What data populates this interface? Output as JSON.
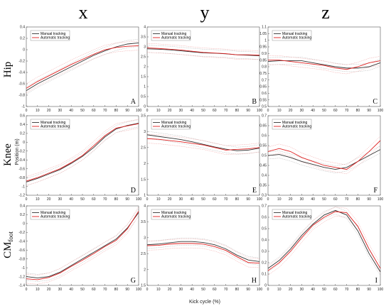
{
  "column_headers": [
    "x",
    "y",
    "z"
  ],
  "row_headers": [
    "Hip",
    "Knee",
    "CM"
  ],
  "row_header_subscript": "foot",
  "shared_xlabel": "Kick cycle (%)",
  "shared_ylabel": "Position (m)",
  "legend": [
    "Manual tracking",
    "Automatic tracking"
  ],
  "colors": {
    "manual": "#333333",
    "automatic": "#e02020",
    "manual_band": "#b5b5b5",
    "automatic_band": "#f2a5a5"
  },
  "chart_data": [
    {
      "type": "line",
      "letter": "A",
      "x": [
        0,
        10,
        20,
        30,
        40,
        50,
        60,
        70,
        80,
        90,
        100
      ],
      "ylim": [
        -1,
        0.4
      ],
      "yticks": [
        "-1",
        "-0.8",
        "-0.6",
        "-0.4",
        "-0.2",
        "0",
        "0.2",
        "0.4"
      ],
      "series": [
        {
          "name": "Manual tracking",
          "values": [
            -0.72,
            -0.6,
            -0.5,
            -0.4,
            -0.3,
            -0.2,
            -0.1,
            -0.02,
            0.05,
            0.1,
            0.12
          ]
        },
        {
          "name": "Automatic tracking",
          "values": [
            -0.68,
            -0.56,
            -0.46,
            -0.36,
            -0.26,
            -0.17,
            -0.08,
            0.0,
            0.04,
            0.06,
            0.07
          ]
        }
      ]
    },
    {
      "type": "line",
      "letter": "B",
      "x": [
        0,
        10,
        20,
        30,
        40,
        50,
        60,
        70,
        80,
        90,
        100
      ],
      "ylim": [
        0,
        4
      ],
      "yticks": [
        "0",
        "0.5",
        "1",
        "1.5",
        "2",
        "2.5",
        "3",
        "3.5",
        "4"
      ],
      "series": [
        {
          "name": "Manual tracking",
          "values": [
            2.9,
            2.88,
            2.85,
            2.8,
            2.75,
            2.7,
            2.68,
            2.65,
            2.6,
            2.58,
            2.55
          ]
        },
        {
          "name": "Automatic tracking",
          "values": [
            2.95,
            2.92,
            2.88,
            2.84,
            2.78,
            2.72,
            2.69,
            2.66,
            2.6,
            2.6,
            2.58
          ]
        }
      ]
    },
    {
      "type": "line",
      "letter": "C",
      "x": [
        0,
        10,
        20,
        30,
        40,
        50,
        60,
        70,
        80,
        90,
        100
      ],
      "ylim": [
        0.5,
        1.1
      ],
      "yticks": [
        "0.5",
        "0.55",
        "0.6",
        "0.65",
        "0.7",
        "0.75",
        "0.8",
        "0.85",
        "0.9",
        "0.95",
        "1",
        "1.05",
        "1.1"
      ],
      "series": [
        {
          "name": "Manual tracking",
          "values": [
            0.84,
            0.845,
            0.845,
            0.845,
            0.83,
            0.815,
            0.8,
            0.79,
            0.79,
            0.8,
            0.83
          ]
        },
        {
          "name": "Automatic tracking",
          "values": [
            0.85,
            0.85,
            0.84,
            0.83,
            0.82,
            0.81,
            0.79,
            0.78,
            0.8,
            0.83,
            0.845
          ]
        }
      ]
    },
    {
      "type": "line",
      "letter": "D",
      "x": [
        0,
        10,
        20,
        30,
        40,
        50,
        60,
        70,
        80,
        90,
        100
      ],
      "ylim": [
        -1.2,
        0.6
      ],
      "yticks": [
        "-1.2",
        "-1",
        "-0.8",
        "-0.6",
        "-0.4",
        "-0.2",
        "0",
        "0.2",
        "0.4",
        "0.6"
      ],
      "series": [
        {
          "name": "Manual tracking",
          "values": [
            -0.9,
            -0.82,
            -0.72,
            -0.62,
            -0.48,
            -0.32,
            -0.12,
            0.12,
            0.3,
            0.38,
            0.43
          ]
        },
        {
          "name": "Automatic tracking",
          "values": [
            -0.88,
            -0.8,
            -0.7,
            -0.6,
            -0.46,
            -0.3,
            -0.08,
            0.15,
            0.32,
            0.37,
            0.42
          ]
        }
      ]
    },
    {
      "type": "line",
      "letter": "E",
      "x": [
        0,
        10,
        20,
        30,
        40,
        50,
        60,
        70,
        80,
        90,
        100
      ],
      "ylim": [
        1,
        3.5
      ],
      "yticks": [
        "1",
        "1.5",
        "2",
        "2.5",
        "3",
        "3.5"
      ],
      "series": [
        {
          "name": "Manual tracking",
          "values": [
            2.9,
            2.85,
            2.8,
            2.75,
            2.68,
            2.6,
            2.52,
            2.45,
            2.4,
            2.42,
            2.48
          ]
        },
        {
          "name": "Automatic tracking",
          "values": [
            2.78,
            2.76,
            2.72,
            2.68,
            2.63,
            2.58,
            2.5,
            2.42,
            2.44,
            2.46,
            2.5
          ]
        }
      ]
    },
    {
      "type": "line",
      "letter": "F",
      "x": [
        0,
        10,
        20,
        30,
        40,
        50,
        60,
        70,
        80,
        90,
        100
      ],
      "ylim": [
        0.3,
        0.7
      ],
      "yticks": [
        "0.3",
        "0.35",
        "0.4",
        "0.45",
        "0.5",
        "0.55",
        "0.6",
        "0.65",
        "0.7"
      ],
      "series": [
        {
          "name": "Manual tracking",
          "values": [
            0.5,
            0.505,
            0.49,
            0.47,
            0.455,
            0.44,
            0.43,
            0.44,
            0.47,
            0.5,
            0.53
          ]
        },
        {
          "name": "Automatic tracking",
          "values": [
            0.52,
            0.535,
            0.52,
            0.49,
            0.47,
            0.45,
            0.44,
            0.43,
            0.47,
            0.52,
            0.575
          ]
        }
      ]
    },
    {
      "type": "line",
      "letter": "G",
      "x": [
        0,
        10,
        20,
        30,
        40,
        50,
        60,
        70,
        80,
        90,
        100
      ],
      "ylim": [
        -1.4,
        0.4
      ],
      "yticks": [
        "-1.4",
        "-1.2",
        "-1",
        "-0.8",
        "-0.6",
        "-0.4",
        "-0.2",
        "0",
        "0.2",
        "0.4"
      ],
      "series": [
        {
          "name": "Manual tracking",
          "values": [
            -1.2,
            -1.23,
            -1.2,
            -1.1,
            -0.95,
            -0.8,
            -0.65,
            -0.5,
            -0.35,
            -0.1,
            0.25
          ]
        },
        {
          "name": "Automatic tracking",
          "values": [
            -1.25,
            -1.27,
            -1.22,
            -1.12,
            -0.97,
            -0.83,
            -0.68,
            -0.52,
            -0.38,
            -0.12,
            0.28
          ]
        }
      ]
    },
    {
      "type": "line",
      "letter": "H",
      "x": [
        0,
        10,
        20,
        30,
        40,
        50,
        60,
        70,
        80,
        90,
        100
      ],
      "ylim": [
        1.5,
        4
      ],
      "yticks": [
        "1.5",
        "2",
        "2.5",
        "3",
        "3.5",
        "4"
      ],
      "series": [
        {
          "name": "Manual tracking",
          "values": [
            2.78,
            2.8,
            2.84,
            2.88,
            2.88,
            2.85,
            2.78,
            2.65,
            2.45,
            2.3,
            2.25
          ]
        },
        {
          "name": "Automatic tracking",
          "values": [
            2.75,
            2.76,
            2.8,
            2.82,
            2.82,
            2.8,
            2.72,
            2.6,
            2.4,
            2.22,
            2.2
          ]
        }
      ]
    },
    {
      "type": "line",
      "letter": "I",
      "x": [
        0,
        10,
        20,
        30,
        40,
        50,
        60,
        70,
        80,
        90,
        100
      ],
      "ylim": [
        0,
        0.7
      ],
      "yticks": [
        "0",
        "0.1",
        "0.2",
        "0.3",
        "0.4",
        "0.5",
        "0.6",
        "0.7"
      ],
      "series": [
        {
          "name": "Manual tracking",
          "values": [
            0.15,
            0.22,
            0.32,
            0.44,
            0.54,
            0.62,
            0.66,
            0.62,
            0.48,
            0.28,
            0.12
          ]
        },
        {
          "name": "Automatic tracking",
          "values": [
            0.13,
            0.2,
            0.3,
            0.42,
            0.53,
            0.6,
            0.65,
            0.64,
            0.52,
            0.32,
            0.15
          ]
        }
      ]
    }
  ]
}
